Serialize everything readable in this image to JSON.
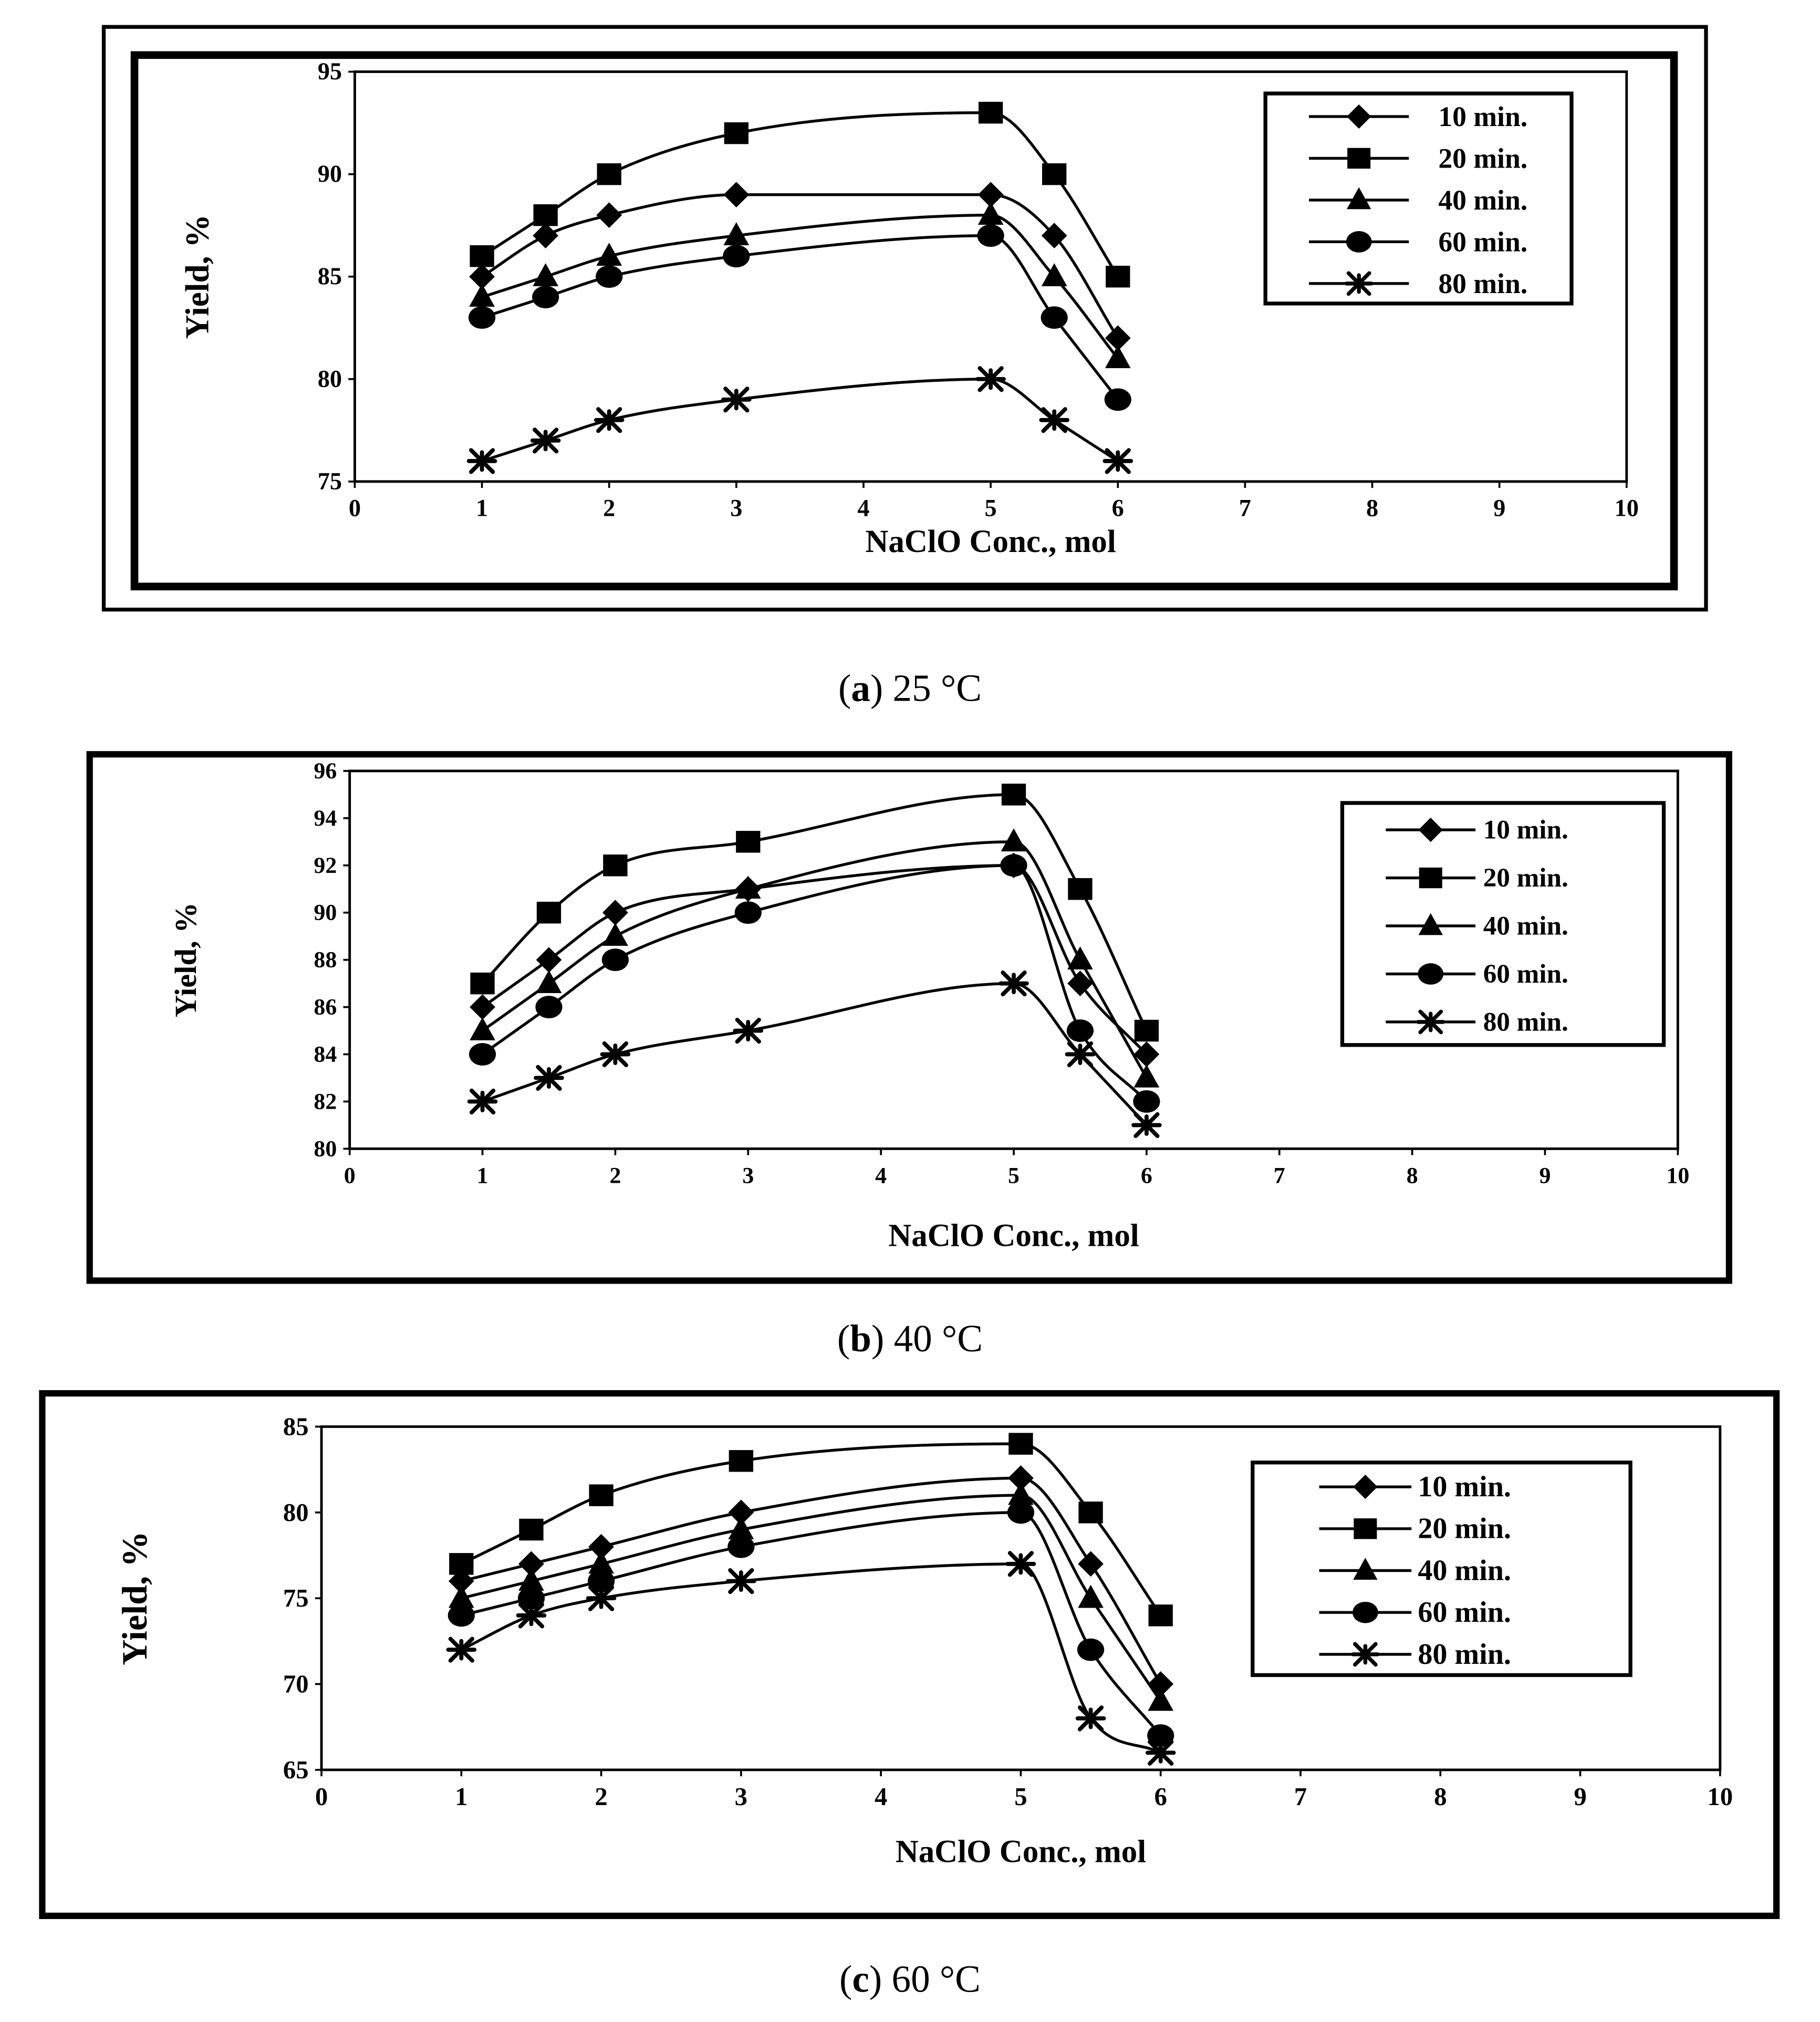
{
  "figure": {
    "panels": [
      {
        "letter": "a",
        "caption_rest": ") 25 °C"
      },
      {
        "letter": "b",
        "caption_rest": ") 40 °C"
      },
      {
        "letter": "c",
        "caption_rest": ") 60 °C"
      }
    ]
  },
  "chart_data": [
    {
      "type": "line",
      "panel": "a",
      "caption": "(a) 25 °C",
      "xlabel": "NaClO Conc., mol",
      "ylabel": "Yield, %",
      "xlim": [
        0,
        10
      ],
      "ylim": [
        75,
        95
      ],
      "xticks": [
        0,
        1,
        2,
        3,
        4,
        5,
        6,
        7,
        8,
        9,
        10
      ],
      "yticks": [
        75,
        80,
        85,
        90,
        95
      ],
      "legend_position": "top-right",
      "x": [
        1,
        1.5,
        2,
        3,
        5,
        5.5,
        6
      ],
      "series": [
        {
          "name": "10 min.",
          "marker": "diamond",
          "values": [
            85,
            87,
            88,
            89,
            89,
            87,
            82
          ]
        },
        {
          "name": "20 min.",
          "marker": "square",
          "values": [
            86,
            88,
            90,
            92,
            93,
            90,
            85
          ]
        },
        {
          "name": "40 min.",
          "marker": "triangle",
          "values": [
            84,
            85,
            86,
            87,
            88,
            85,
            81
          ]
        },
        {
          "name": "60 min.",
          "marker": "circle",
          "values": [
            83,
            84,
            85,
            86,
            87,
            83,
            79
          ]
        },
        {
          "name": "80 min.",
          "marker": "star",
          "values": [
            76,
            77,
            78,
            79,
            80,
            78,
            76
          ]
        }
      ]
    },
    {
      "type": "line",
      "panel": "b",
      "caption": "(b) 40 °C",
      "xlabel": "NaClO Conc., mol",
      "ylabel": "Yield, %",
      "xlim": [
        0,
        10
      ],
      "ylim": [
        80,
        96
      ],
      "xticks": [
        0,
        1,
        2,
        3,
        4,
        5,
        6,
        7,
        8,
        9,
        10
      ],
      "yticks": [
        80,
        82,
        84,
        86,
        88,
        90,
        92,
        94,
        96
      ],
      "legend_position": "top-right",
      "x": [
        1,
        1.5,
        2,
        3,
        5,
        5.5,
        6
      ],
      "series": [
        {
          "name": "10 min.",
          "marker": "diamond",
          "values": [
            86,
            88,
            90,
            91,
            92,
            87,
            84
          ]
        },
        {
          "name": "20 min.",
          "marker": "square",
          "values": [
            87,
            90,
            92,
            93,
            95,
            91,
            85
          ]
        },
        {
          "name": "40 min.",
          "marker": "triangle",
          "values": [
            85,
            87,
            89,
            91,
            93,
            88,
            83
          ]
        },
        {
          "name": "60 min.",
          "marker": "circle",
          "values": [
            84,
            86,
            88,
            90,
            92,
            85,
            82
          ]
        },
        {
          "name": "80 min.",
          "marker": "star",
          "values": [
            82,
            83,
            84,
            85,
            87,
            84,
            81
          ]
        }
      ]
    },
    {
      "type": "line",
      "panel": "c",
      "caption": "(c) 60 °C",
      "xlabel": "NaClO Conc., mol",
      "ylabel": "Yield, %",
      "xlim": [
        0,
        10
      ],
      "ylim": [
        65,
        85
      ],
      "xticks": [
        0,
        1,
        2,
        3,
        4,
        5,
        6,
        7,
        8,
        9,
        10
      ],
      "yticks": [
        65,
        70,
        75,
        80,
        85
      ],
      "legend_position": "top-right",
      "x": [
        1,
        1.5,
        2,
        3,
        5,
        5.5,
        6
      ],
      "series": [
        {
          "name": "10 min.",
          "marker": "diamond",
          "values": [
            76,
            77,
            78,
            80,
            82,
            77,
            70
          ]
        },
        {
          "name": "20 min.",
          "marker": "square",
          "values": [
            77,
            79,
            81,
            83,
            84,
            80,
            74
          ]
        },
        {
          "name": "40 min.",
          "marker": "triangle",
          "values": [
            75,
            76,
            77,
            79,
            81,
            75,
            69
          ]
        },
        {
          "name": "60 min.",
          "marker": "circle",
          "values": [
            74,
            75,
            76,
            78,
            80,
            72,
            67
          ]
        },
        {
          "name": "80 min.",
          "marker": "star",
          "values": [
            72,
            74,
            75,
            76,
            77,
            68,
            66
          ]
        }
      ]
    }
  ]
}
